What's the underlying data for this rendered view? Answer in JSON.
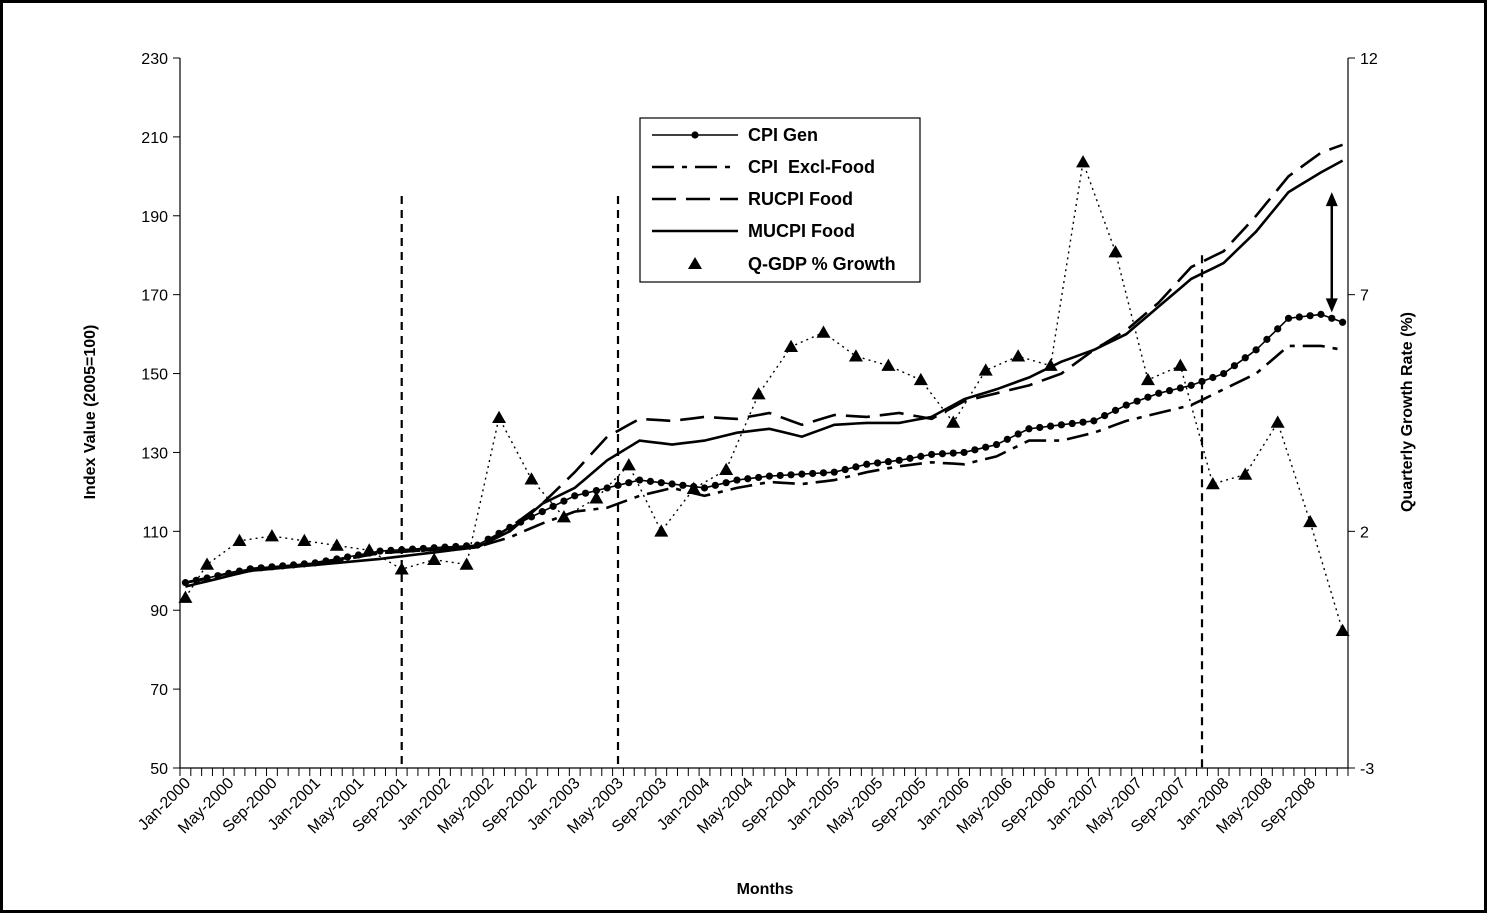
{
  "chart_data": {
    "type": "line",
    "title": "",
    "xlabel": "Months",
    "ylabel_left": "Index Value (2005=100)",
    "ylabel_right": "Quarterly Growth Rate (%)",
    "ylim_left": [
      50,
      230
    ],
    "yticks_left": [
      50,
      70,
      90,
      110,
      130,
      150,
      170,
      190,
      210,
      230
    ],
    "ylim_right": [
      -3,
      12
    ],
    "yticks_right": [
      "-3",
      "2",
      "7",
      "12"
    ],
    "x_tick_labels": [
      "Jan-2000",
      "May-2000",
      "Sep-2000",
      "Jan-2001",
      "May-2001",
      "Sep-2001",
      "Jan-2002",
      "May-2002",
      "Sep-2002",
      "Jan-2003",
      "May-2003",
      "Sep-2003",
      "Jan-2004",
      "May-2004",
      "Sep-2004",
      "Jan-2005",
      "May-2005",
      "Sep-2005",
      "Jan-2006",
      "May-2006",
      "Sep-2006",
      "Jan-2007",
      "May-2007",
      "Sep-2007",
      "Jan-2008",
      "May-2008",
      "Sep-2008"
    ],
    "months_count": 108,
    "legend": [
      "CPI Gen",
      "CPI  Excl-Food",
      "RUCPI Food",
      "MUCPI Food",
      "Q-GDP % Growth"
    ],
    "legend_position": "top-center",
    "series": [
      {
        "name": "CPI Gen",
        "axis": "left",
        "style": "solid-dot",
        "knots": [
          [
            0,
            97
          ],
          [
            6,
            100.5
          ],
          [
            12,
            102
          ],
          [
            18,
            105
          ],
          [
            24,
            106
          ],
          [
            27,
            106.5
          ],
          [
            30,
            111
          ],
          [
            33,
            115
          ],
          [
            36,
            119
          ],
          [
            39,
            121
          ],
          [
            42,
            123
          ],
          [
            45,
            122
          ],
          [
            48,
            121
          ],
          [
            51,
            123
          ],
          [
            54,
            124
          ],
          [
            57,
            124.5
          ],
          [
            60,
            125
          ],
          [
            63,
            127
          ],
          [
            66,
            128
          ],
          [
            69,
            129.5
          ],
          [
            72,
            130
          ],
          [
            75,
            132
          ],
          [
            78,
            136
          ],
          [
            81,
            137
          ],
          [
            84,
            138
          ],
          [
            87,
            142
          ],
          [
            90,
            145
          ],
          [
            93,
            147
          ],
          [
            96,
            150
          ],
          [
            99,
            156
          ],
          [
            102,
            164
          ],
          [
            105,
            165
          ],
          [
            107,
            163
          ]
        ]
      },
      {
        "name": "CPI  Excl-Food",
        "axis": "left",
        "style": "dash-dot",
        "knots": [
          [
            0,
            97
          ],
          [
            6,
            100
          ],
          [
            12,
            102
          ],
          [
            18,
            104.5
          ],
          [
            24,
            105.5
          ],
          [
            27,
            106
          ],
          [
            30,
            108.5
          ],
          [
            33,
            112
          ],
          [
            36,
            115
          ],
          [
            39,
            116
          ],
          [
            42,
            119
          ],
          [
            45,
            121
          ],
          [
            48,
            119
          ],
          [
            51,
            121
          ],
          [
            54,
            122.5
          ],
          [
            57,
            122
          ],
          [
            60,
            123
          ],
          [
            63,
            125
          ],
          [
            66,
            126.5
          ],
          [
            69,
            127.5
          ],
          [
            72,
            127
          ],
          [
            75,
            129
          ],
          [
            78,
            133
          ],
          [
            81,
            133
          ],
          [
            84,
            135
          ],
          [
            87,
            138
          ],
          [
            90,
            140
          ],
          [
            93,
            142
          ],
          [
            96,
            146
          ],
          [
            99,
            150
          ],
          [
            102,
            157
          ],
          [
            105,
            157
          ],
          [
            107,
            156
          ]
        ]
      },
      {
        "name": "RUCPI Food",
        "axis": "left",
        "style": "long-dash",
        "knots": [
          [
            0,
            97
          ],
          [
            6,
            100.5
          ],
          [
            12,
            101.5
          ],
          [
            18,
            104.5
          ],
          [
            24,
            105.5
          ],
          [
            27,
            106
          ],
          [
            30,
            111
          ],
          [
            33,
            117
          ],
          [
            36,
            125
          ],
          [
            39,
            134
          ],
          [
            42,
            138.5
          ],
          [
            45,
            138
          ],
          [
            48,
            139
          ],
          [
            51,
            138.5
          ],
          [
            54,
            140
          ],
          [
            57,
            137
          ],
          [
            60,
            139.5
          ],
          [
            63,
            139
          ],
          [
            66,
            140
          ],
          [
            69,
            138.5
          ],
          [
            72,
            143
          ],
          [
            75,
            145
          ],
          [
            78,
            147
          ],
          [
            81,
            150
          ],
          [
            84,
            156
          ],
          [
            87,
            161
          ],
          [
            90,
            168
          ],
          [
            93,
            177
          ],
          [
            96,
            181
          ],
          [
            99,
            190
          ],
          [
            102,
            200
          ],
          [
            105,
            206
          ],
          [
            107,
            208
          ]
        ]
      },
      {
        "name": "MUCPI Food",
        "axis": "left",
        "style": "solid",
        "knots": [
          [
            0,
            96
          ],
          [
            6,
            100
          ],
          [
            12,
            101.5
          ],
          [
            18,
            103
          ],
          [
            24,
            105
          ],
          [
            27,
            106
          ],
          [
            30,
            110
          ],
          [
            33,
            117
          ],
          [
            36,
            121
          ],
          [
            39,
            128
          ],
          [
            42,
            133
          ],
          [
            45,
            132
          ],
          [
            48,
            133
          ],
          [
            51,
            135
          ],
          [
            54,
            136
          ],
          [
            57,
            134
          ],
          [
            60,
            137
          ],
          [
            63,
            137.5
          ],
          [
            66,
            137.5
          ],
          [
            69,
            139
          ],
          [
            72,
            143.5
          ],
          [
            75,
            146
          ],
          [
            78,
            149
          ],
          [
            81,
            153
          ],
          [
            84,
            156
          ],
          [
            87,
            160
          ],
          [
            90,
            167
          ],
          [
            93,
            174
          ],
          [
            96,
            178
          ],
          [
            99,
            186
          ],
          [
            102,
            196
          ],
          [
            105,
            201
          ],
          [
            107,
            204
          ]
        ]
      },
      {
        "name": "Q-GDP % Growth",
        "axis": "right",
        "style": "markers-dotted",
        "points": [
          [
            0,
            0.6
          ],
          [
            2,
            1.3
          ],
          [
            5,
            1.8
          ],
          [
            8,
            1.9
          ],
          [
            11,
            1.8
          ],
          [
            14,
            1.7
          ],
          [
            17,
            1.6
          ],
          [
            20,
            1.2
          ],
          [
            23,
            1.4
          ],
          [
            26,
            1.3
          ],
          [
            29,
            4.4
          ],
          [
            32,
            3.1
          ],
          [
            35,
            2.3
          ],
          [
            38,
            2.7
          ],
          [
            41,
            3.4
          ],
          [
            44,
            2.0
          ],
          [
            47,
            2.9
          ],
          [
            50,
            3.3
          ],
          [
            53,
            4.9
          ],
          [
            56,
            5.9
          ],
          [
            59,
            6.2
          ],
          [
            62,
            5.7
          ],
          [
            65,
            5.5
          ],
          [
            68,
            5.2
          ],
          [
            71,
            4.3
          ],
          [
            74,
            5.4
          ],
          [
            77,
            5.7
          ],
          [
            80,
            5.5
          ],
          [
            83,
            9.8
          ],
          [
            86,
            7.9
          ],
          [
            89,
            5.2
          ],
          [
            92,
            5.5
          ],
          [
            95,
            3.0
          ],
          [
            98,
            3.2
          ],
          [
            101,
            4.3
          ],
          [
            104,
            2.2
          ],
          [
            107,
            -0.1
          ]
        ]
      }
    ],
    "annotations": [
      "dashed vertical line near Sep-2001",
      "dashed vertical line near Jan-2003",
      "dashed vertical line near May-2007",
      "double-headed arrow between RUCPI Food and CPI Gen near Nov-2008"
    ]
  }
}
